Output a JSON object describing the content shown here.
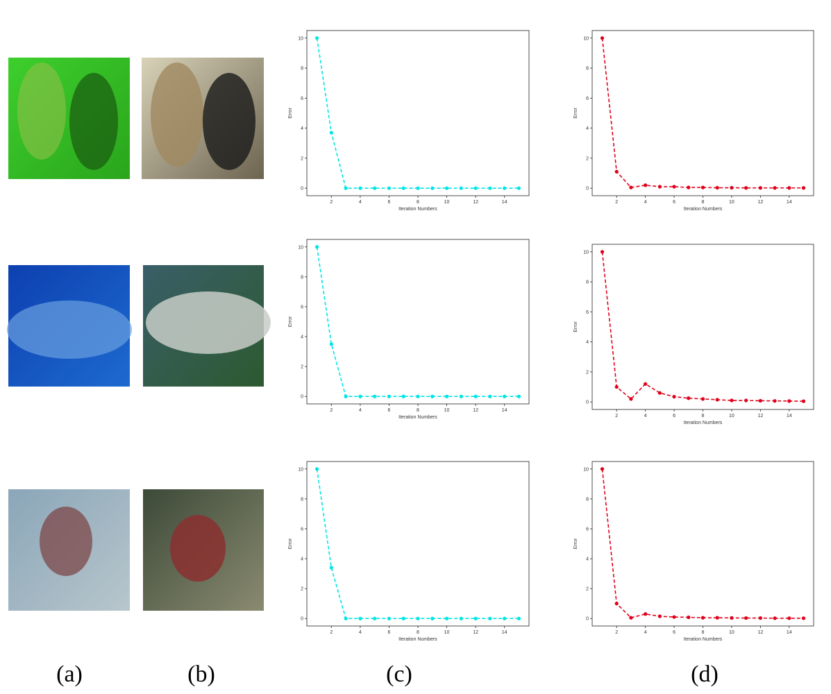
{
  "chart_data": [
    {
      "type": "line",
      "xlabel": "Iteration Numbers",
      "ylabel": "Error",
      "color": "#00e5e5",
      "grid": false,
      "x": [
        1,
        2,
        3,
        4,
        5,
        6,
        7,
        8,
        9,
        10,
        11,
        12,
        13,
        14,
        15
      ],
      "values": [
        10,
        3.7,
        0,
        0,
        0,
        0,
        0,
        0,
        0,
        0,
        0,
        0,
        0,
        0,
        0
      ],
      "xlim": [
        0.3,
        15.7
      ],
      "ylim": [
        -0.5,
        10.5
      ],
      "xticks": [
        2,
        4,
        6,
        8,
        10,
        12,
        14
      ],
      "yticks": [
        0,
        2,
        4,
        6,
        8,
        10
      ]
    },
    {
      "type": "line",
      "xlabel": "Iteration Numbers",
      "ylabel": "Error",
      "color": "#e0001a",
      "grid": false,
      "x": [
        1,
        2,
        3,
        4,
        5,
        6,
        7,
        8,
        9,
        10,
        11,
        12,
        13,
        14,
        15
      ],
      "values": [
        10,
        1.1,
        0.05,
        0.2,
        0.1,
        0.1,
        0.05,
        0.05,
        0.03,
        0.03,
        0.02,
        0.02,
        0.02,
        0.02,
        0.02
      ],
      "xlim": [
        0.3,
        15.7
      ],
      "ylim": [
        -0.5,
        10.5
      ],
      "xticks": [
        2,
        4,
        6,
        8,
        10,
        12,
        14
      ],
      "yticks": [
        0,
        2,
        4,
        6,
        8,
        10
      ]
    },
    {
      "type": "line",
      "xlabel": "Iteration Numbers",
      "ylabel": "Error",
      "color": "#00e5e5",
      "grid": false,
      "x": [
        1,
        2,
        3,
        4,
        5,
        6,
        7,
        8,
        9,
        10,
        11,
        12,
        13,
        14,
        15
      ],
      "values": [
        10,
        3.5,
        0,
        0,
        0,
        0,
        0,
        0,
        0,
        0,
        0,
        0,
        0,
        0,
        0
      ],
      "xlim": [
        0.3,
        15.7
      ],
      "ylim": [
        -0.5,
        10.5
      ],
      "xticks": [
        2,
        4,
        6,
        8,
        10,
        12,
        14
      ],
      "yticks": [
        0,
        2,
        4,
        6,
        8,
        10
      ]
    },
    {
      "type": "line",
      "xlabel": "Iteration Numbers",
      "ylabel": "Error",
      "color": "#e0001a",
      "grid": false,
      "x": [
        1,
        2,
        3,
        4,
        5,
        6,
        7,
        8,
        9,
        10,
        11,
        12,
        13,
        14,
        15
      ],
      "values": [
        10,
        1.0,
        0.2,
        1.2,
        0.6,
        0.35,
        0.25,
        0.2,
        0.15,
        0.1,
        0.1,
        0.08,
        0.07,
        0.06,
        0.05
      ],
      "xlim": [
        0.3,
        15.7
      ],
      "ylim": [
        -0.5,
        10.5
      ],
      "xticks": [
        2,
        4,
        6,
        8,
        10,
        12,
        14
      ],
      "yticks": [
        0,
        2,
        4,
        6,
        8,
        10
      ]
    },
    {
      "type": "line",
      "xlabel": "Iteration Numbers",
      "ylabel": "Error",
      "color": "#00e5e5",
      "grid": false,
      "x": [
        1,
        2,
        3,
        4,
        5,
        6,
        7,
        8,
        9,
        10,
        11,
        12,
        13,
        14,
        15
      ],
      "values": [
        10,
        3.4,
        0,
        0,
        0,
        0,
        0,
        0,
        0,
        0,
        0,
        0,
        0,
        0,
        0
      ],
      "xlim": [
        0.3,
        15.7
      ],
      "ylim": [
        -0.5,
        10.5
      ],
      "xticks": [
        2,
        4,
        6,
        8,
        10,
        12,
        14
      ],
      "yticks": [
        0,
        2,
        4,
        6,
        8,
        10
      ]
    },
    {
      "type": "line",
      "xlabel": "Iteration Numbers",
      "ylabel": "Error",
      "color": "#e0001a",
      "grid": false,
      "x": [
        1,
        2,
        3,
        4,
        5,
        6,
        7,
        8,
        9,
        10,
        11,
        12,
        13,
        14,
        15
      ],
      "values": [
        10,
        1.0,
        0.05,
        0.3,
        0.15,
        0.1,
        0.08,
        0.05,
        0.05,
        0.04,
        0.03,
        0.03,
        0.02,
        0.02,
        0.02
      ],
      "xlim": [
        0.3,
        15.7
      ],
      "ylim": [
        -0.5,
        10.5
      ],
      "xticks": [
        2,
        4,
        6,
        8,
        10,
        12,
        14
      ],
      "yticks": [
        0,
        2,
        4,
        6,
        8,
        10
      ]
    }
  ],
  "panel_labels": [
    "(a)",
    "(b)",
    "(c)",
    "(d)"
  ]
}
